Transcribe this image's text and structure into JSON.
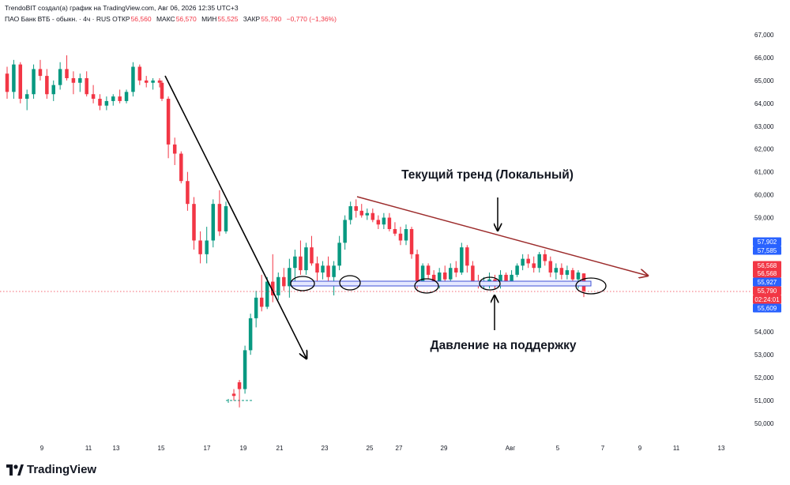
{
  "header": {
    "credit": "TrendoBIT создал(а) график на TradingView.com, Авг 06, 2026 12:35 UTC+3"
  },
  "legend": {
    "symbol": "ПАО Банк ВТБ - обыкн. · 4ч · RUS",
    "open_label": "ОТКР",
    "open_value": "56,560",
    "high_label": "МАКС",
    "high_value": "56,570",
    "low_label": "МИН",
    "low_value": "55,525",
    "close_label": "ЗАКР",
    "close_value": "55,790",
    "change": "−0,770 (−1,36%)"
  },
  "annotations": {
    "trend_label": "Текущий тренд (Локальный)",
    "support_label": "Давление на поддержку"
  },
  "brand": {
    "name": "TradingView",
    "icon": "tradingview-logo-icon"
  },
  "price_badges": [
    {
      "value": "57,902",
      "color": "#2962ff"
    },
    {
      "value": "57,585",
      "color": "#2962ff"
    },
    {
      "value": "56,568",
      "color": "#f23645"
    },
    {
      "value": "56,568",
      "color": "#f23645"
    },
    {
      "value": "55,927",
      "color": "#2962ff"
    },
    {
      "value": "55,790",
      "color": "#f23645"
    },
    {
      "value": "02:24:01",
      "color": "#f23645"
    },
    {
      "value": "55,609",
      "color": "#2962ff"
    }
  ],
  "colors": {
    "up": "#089981",
    "down": "#f23645",
    "trend_line": "#9c2b2b",
    "support_band": "#3f51d4",
    "axis_text": "#131722"
  },
  "chart_data": {
    "type": "candlestick",
    "x_ticks": [
      "9",
      "11",
      "13",
      "15",
      "17",
      "19",
      "21",
      "23",
      "25",
      "27",
      "29",
      "Авг",
      "5",
      "7",
      "9",
      "11",
      "13"
    ],
    "y_ticks": [
      "67,000",
      "66,000",
      "65,000",
      "64,000",
      "63,000",
      "62,000",
      "61,000",
      "60,000",
      "59,000",
      "58,000",
      "57,000",
      "56,000",
      "55,000",
      "54,000",
      "53,000",
      "52,000",
      "51,000",
      "50,000"
    ],
    "ylim": [
      49.6,
      67.5
    ],
    "candles": [
      [
        65.3,
        65.6,
        64.2,
        64.5
      ],
      [
        64.5,
        65.9,
        64.2,
        65.7
      ],
      [
        65.7,
        65.8,
        64.0,
        64.2
      ],
      [
        64.2,
        64.6,
        63.7,
        64.4
      ],
      [
        64.4,
        65.7,
        64.2,
        65.5
      ],
      [
        65.5,
        65.9,
        65.0,
        65.2
      ],
      [
        65.2,
        65.5,
        64.2,
        64.4
      ],
      [
        64.4,
        65.0,
        64.1,
        64.8
      ],
      [
        64.8,
        65.8,
        64.6,
        65.5
      ],
      [
        65.5,
        66.1,
        65.0,
        65.1
      ],
      [
        65.1,
        65.4,
        64.4,
        64.9
      ],
      [
        64.9,
        65.3,
        64.5,
        65.1
      ],
      [
        65.1,
        65.4,
        64.3,
        64.4
      ],
      [
        64.4,
        64.8,
        64.0,
        64.2
      ],
      [
        64.2,
        64.4,
        63.7,
        63.9
      ],
      [
        63.9,
        64.3,
        63.7,
        64.1
      ],
      [
        64.1,
        64.4,
        63.9,
        64.3
      ],
      [
        64.3,
        64.6,
        64.0,
        64.1
      ],
      [
        64.1,
        64.6,
        64.0,
        64.5
      ],
      [
        64.5,
        65.8,
        64.3,
        65.6
      ],
      [
        65.6,
        65.7,
        64.8,
        65.0
      ],
      [
        65.0,
        65.2,
        64.7,
        64.9
      ],
      [
        64.9,
        65.1,
        64.6,
        65.0
      ],
      [
        65.0,
        65.1,
        64.7,
        64.9
      ],
      [
        64.9,
        65.0,
        64.1,
        64.2
      ],
      [
        64.2,
        64.3,
        61.6,
        62.2
      ],
      [
        62.2,
        62.5,
        61.3,
        61.8
      ],
      [
        61.8,
        61.9,
        60.5,
        60.6
      ],
      [
        60.6,
        61.0,
        59.3,
        59.6
      ],
      [
        59.6,
        59.9,
        57.6,
        58.0
      ],
      [
        58.0,
        58.4,
        57.0,
        57.4
      ],
      [
        57.4,
        58.6,
        57.0,
        58.0
      ],
      [
        58.0,
        59.8,
        57.7,
        59.6
      ],
      [
        59.6,
        60.2,
        58.2,
        58.4
      ],
      [
        58.4,
        59.7,
        58.3,
        59.5
      ],
      [
        51.0,
        51.0,
        51.0,
        51.0
      ],
      [
        51.3,
        51.5,
        51.0,
        51.2
      ],
      [
        51.8,
        51.9,
        50.7,
        51.5
      ],
      [
        51.5,
        53.4,
        51.3,
        53.2
      ],
      [
        53.2,
        54.8,
        53.0,
        54.6
      ],
      [
        54.6,
        55.8,
        54.2,
        55.5
      ],
      [
        55.5,
        56.5,
        54.9,
        55.1
      ],
      [
        55.1,
        56.4,
        55.0,
        56.2
      ],
      [
        56.2,
        57.4,
        55.3,
        55.6
      ],
      [
        55.6,
        56.6,
        55.4,
        56.4
      ],
      [
        56.4,
        56.8,
        55.8,
        56.0
      ],
      [
        56.0,
        57.2,
        55.5,
        56.8
      ],
      [
        56.8,
        57.6,
        56.2,
        57.3
      ],
      [
        57.3,
        58.0,
        56.5,
        56.7
      ],
      [
        56.7,
        57.9,
        56.5,
        57.7
      ],
      [
        57.7,
        58.2,
        56.9,
        57.0
      ],
      [
        57.0,
        57.3,
        56.2,
        56.6
      ],
      [
        56.6,
        57.1,
        56.3,
        56.9
      ],
      [
        56.9,
        57.3,
        56.2,
        56.4
      ],
      [
        56.4,
        57.1,
        55.6,
        56.9
      ],
      [
        56.9,
        58.2,
        56.7,
        57.9
      ],
      [
        57.9,
        59.1,
        57.6,
        58.9
      ],
      [
        58.9,
        59.7,
        58.7,
        59.5
      ],
      [
        59.5,
        59.8,
        59.0,
        59.3
      ],
      [
        59.3,
        59.6,
        59.0,
        59.1
      ],
      [
        59.1,
        59.4,
        58.9,
        59.2
      ],
      [
        59.2,
        59.4,
        58.8,
        58.9
      ],
      [
        58.9,
        59.1,
        58.5,
        58.7
      ],
      [
        58.7,
        59.2,
        58.5,
        59.0
      ],
      [
        59.0,
        59.2,
        58.4,
        58.5
      ],
      [
        58.5,
        58.8,
        58.2,
        58.3
      ],
      [
        58.3,
        58.6,
        57.8,
        58.0
      ],
      [
        58.0,
        58.7,
        57.8,
        58.5
      ],
      [
        58.5,
        58.6,
        57.2,
        57.4
      ],
      [
        57.4,
        57.6,
        55.9,
        56.1
      ],
      [
        56.1,
        57.0,
        56.0,
        56.9
      ],
      [
        56.9,
        57.0,
        56.3,
        56.5
      ],
      [
        56.5,
        56.7,
        56.0,
        56.2
      ],
      [
        56.2,
        56.8,
        55.9,
        56.6
      ],
      [
        56.6,
        56.9,
        56.0,
        56.3
      ],
      [
        56.3,
        57.0,
        56.1,
        56.8
      ],
      [
        56.8,
        57.1,
        56.4,
        56.6
      ],
      [
        56.6,
        57.9,
        56.5,
        57.7
      ],
      [
        57.7,
        57.8,
        56.6,
        56.9
      ],
      [
        56.9,
        57.1,
        56.0,
        56.2
      ],
      [
        56.2,
        56.5,
        55.9,
        56.1
      ],
      [
        56.1,
        56.4,
        55.9,
        56.2
      ],
      [
        56.2,
        56.6,
        55.9,
        56.3
      ],
      [
        56.3,
        56.5,
        55.9,
        56.0
      ],
      [
        56.0,
        56.7,
        55.9,
        56.5
      ],
      [
        56.5,
        56.6,
        56.0,
        56.2
      ],
      [
        56.2,
        56.7,
        56.1,
        56.5
      ],
      [
        56.5,
        57.0,
        56.4,
        56.9
      ],
      [
        56.9,
        57.4,
        56.7,
        57.2
      ],
      [
        57.2,
        57.4,
        56.8,
        57.0
      ],
      [
        57.0,
        57.3,
        56.6,
        56.8
      ],
      [
        56.8,
        57.5,
        56.6,
        57.4
      ],
      [
        57.4,
        57.6,
        56.9,
        57.1
      ],
      [
        57.1,
        57.3,
        56.4,
        56.6
      ],
      [
        56.6,
        57.0,
        56.3,
        56.8
      ],
      [
        56.8,
        57.0,
        56.3,
        56.5
      ],
      [
        56.5,
        56.9,
        56.3,
        56.7
      ],
      [
        56.7,
        56.8,
        56.1,
        56.3
      ],
      [
        56.3,
        56.7,
        55.9,
        56.6
      ],
      [
        56.56,
        56.57,
        55.525,
        55.79
      ]
    ]
  }
}
